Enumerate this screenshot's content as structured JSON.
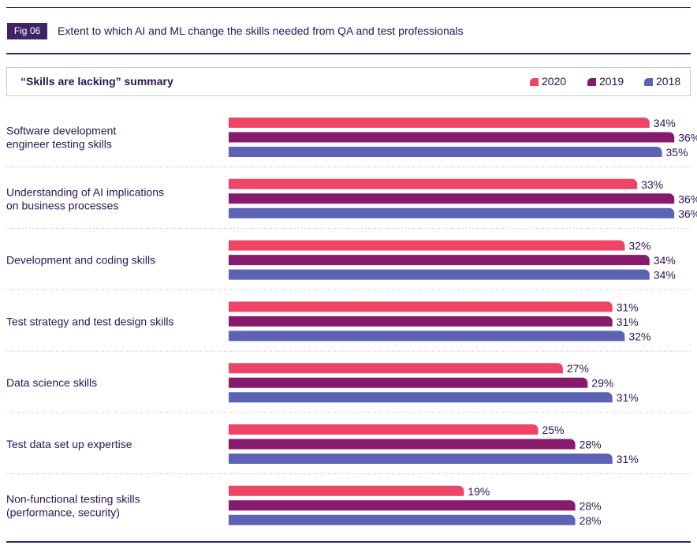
{
  "header": {
    "badge": "Fig 06",
    "title": "Extent to which AI and ML change the skills needed from QA and test professionals"
  },
  "chart_data": {
    "type": "bar",
    "orientation": "horizontal",
    "title": "“Skills are lacking” summary",
    "categories": [
      [
        "Software development",
        "engineer testing skills"
      ],
      [
        "Understanding of AI implications",
        "on business processes"
      ],
      [
        "Development and coding skills"
      ],
      [
        "Test strategy and test design skills"
      ],
      [
        "Data science skills"
      ],
      [
        "Test data set up expertise"
      ],
      [
        "Non-functional testing skills",
        "(performance, security)"
      ]
    ],
    "series": [
      {
        "name": "2020",
        "color": "#ee4466",
        "values": [
          34,
          33,
          32,
          31,
          27,
          25,
          19
        ]
      },
      {
        "name": "2019",
        "color": "#861b6e",
        "values": [
          36,
          36,
          34,
          31,
          29,
          28,
          28
        ]
      },
      {
        "name": "2018",
        "color": "#5d63b4",
        "values": [
          35,
          36,
          34,
          32,
          31,
          31,
          28
        ]
      }
    ],
    "value_suffix": "%",
    "legend": "top-right",
    "xlim": [
      0,
      40
    ]
  }
}
